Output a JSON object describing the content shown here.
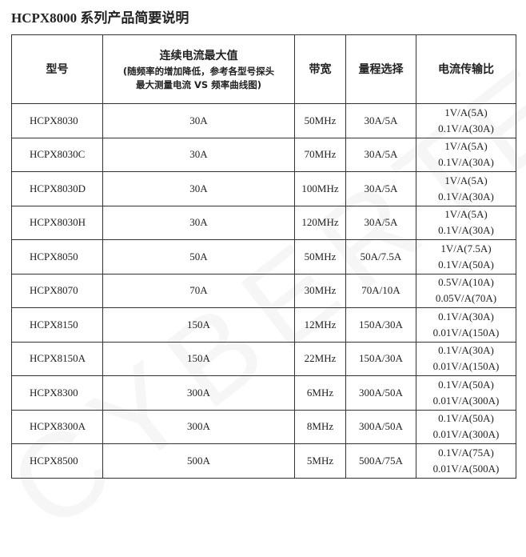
{
  "title": "HCPX8000 系列产品简要说明",
  "watermark": "CYBERTEK",
  "table": {
    "headers": {
      "model": "型号",
      "current_main": "连续电流最大值",
      "current_note1": "(随频率的增加降低，参考各型号探头",
      "current_note2": "最大测量电流 VS 频率曲线图)",
      "bandwidth": "带宽",
      "range": "量程选择",
      "ratio": "电流传输比"
    },
    "rows": [
      {
        "model": "HCPX8030",
        "current": "30A",
        "bandwidth": "50MHz",
        "range": "30A/5A",
        "ratio1": "1V/A(5A)",
        "ratio2": "0.1V/A(30A)"
      },
      {
        "model": "HCPX8030C",
        "current": "30A",
        "bandwidth": "70MHz",
        "range": "30A/5A",
        "ratio1": "1V/A(5A)",
        "ratio2": "0.1V/A(30A)"
      },
      {
        "model": "HCPX8030D",
        "current": "30A",
        "bandwidth": "100MHz",
        "range": "30A/5A",
        "ratio1": "1V/A(5A)",
        "ratio2": "0.1V/A(30A)"
      },
      {
        "model": "HCPX8030H",
        "current": "30A",
        "bandwidth": "120MHz",
        "range": "30A/5A",
        "ratio1": "1V/A(5A)",
        "ratio2": "0.1V/A(30A)"
      },
      {
        "model": "HCPX8050",
        "current": "50A",
        "bandwidth": "50MHz",
        "range": "50A/7.5A",
        "ratio1": "1V/A(7.5A)",
        "ratio2": "0.1V/A(50A)"
      },
      {
        "model": "HCPX8070",
        "current": "70A",
        "bandwidth": "30MHz",
        "range": "70A/10A",
        "ratio1": "0.5V/A(10A)",
        "ratio2": "0.05V/A(70A)"
      },
      {
        "model": "HCPX8150",
        "current": "150A",
        "bandwidth": "12MHz",
        "range": "150A/30A",
        "ratio1": "0.1V/A(30A)",
        "ratio2": "0.01V/A(150A)"
      },
      {
        "model": "HCPX8150A",
        "current": "150A",
        "bandwidth": "22MHz",
        "range": "150A/30A",
        "ratio1": "0.1V/A(30A)",
        "ratio2": "0.01V/A(150A)"
      },
      {
        "model": "HCPX8300",
        "current": "300A",
        "bandwidth": "6MHz",
        "range": "300A/50A",
        "ratio1": "0.1V/A(50A)",
        "ratio2": "0.01V/A(300A)"
      },
      {
        "model": "HCPX8300A",
        "current": "300A",
        "bandwidth": "8MHz",
        "range": "300A/50A",
        "ratio1": "0.1V/A(50A)",
        "ratio2": "0.01V/A(300A)"
      },
      {
        "model": "HCPX8500",
        "current": "500A",
        "bandwidth": "5MHz",
        "range": "500A/75A",
        "ratio1": "0.1V/A(75A)",
        "ratio2": "0.01V/A(500A)"
      }
    ]
  }
}
